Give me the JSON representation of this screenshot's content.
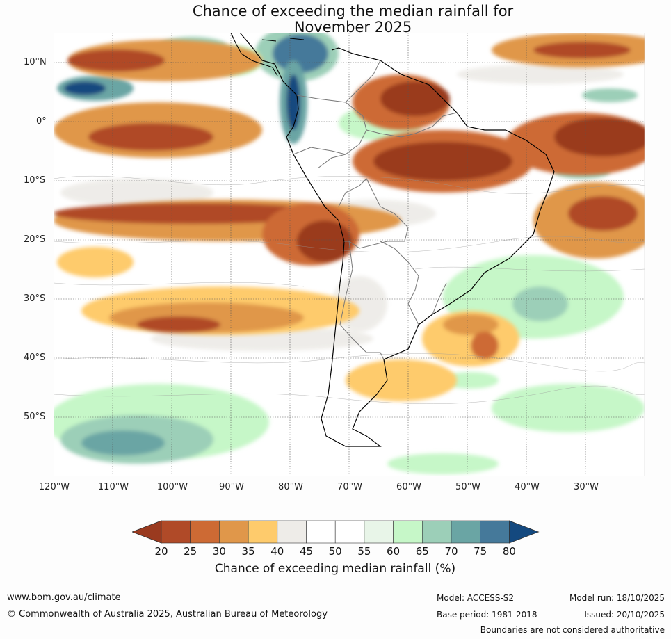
{
  "title": {
    "line1": "Chance of exceeding the median rainfall for",
    "line2": "November 2025"
  },
  "map": {
    "region": "South America",
    "lat_labels": [
      "10°N",
      "0°",
      "10°S",
      "20°S",
      "30°S",
      "40°S",
      "50°S"
    ],
    "lon_labels": [
      "120°W",
      "110°W",
      "100°W",
      "90°W",
      "80°W",
      "70°W",
      "60°W",
      "50°W",
      "40°W",
      "30°W"
    ]
  },
  "legend": {
    "ticks": [
      "20",
      "25",
      "30",
      "35",
      "40",
      "45",
      "50",
      "55",
      "60",
      "65",
      "70",
      "75",
      "80"
    ],
    "colors": [
      "#9a3a1f",
      "#b04a28",
      "#cd6a34",
      "#e0974a",
      "#fecb6c",
      "#eeece8",
      "#ffffff",
      "#ffffff",
      "#e8f5e8",
      "#c6f7c8",
      "#9ccfb8",
      "#6aa5a4",
      "#45799a",
      "#14497f"
    ],
    "label": "Chance of exceeding median rainfall (%)"
  },
  "footer": {
    "url": "www.bom.gov.au/climate",
    "copyright": "© Commonwealth of Australia 2025, Australian Bureau of Meteorology",
    "model": "Model: ACCESS-S2",
    "base_period": "Base period: 1981-2018",
    "model_run": "Model run: 18/10/2025",
    "issued": "Issued: 20/10/2025",
    "disclaimer": "Boundaries are not considered authoritative"
  }
}
